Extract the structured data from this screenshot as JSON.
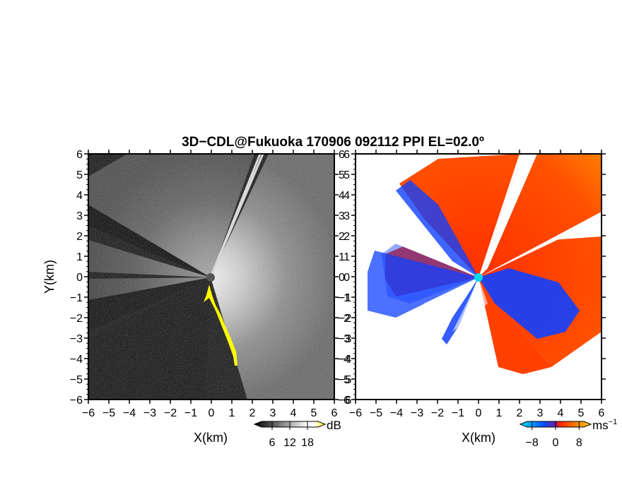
{
  "title": "3D−CDL@Fukuoka 170906 092112 PPI EL=02.0º",
  "chart_data": [
    {
      "type": "heatmap",
      "name": "reflectivity",
      "xlabel": "X(km)",
      "ylabel": "Y(km)",
      "xlim": [
        -6,
        6
      ],
      "ylim": [
        -6,
        6
      ],
      "x_ticks": [
        "−6",
        "−5",
        "−4",
        "−3",
        "−2",
        "−1",
        "0",
        "1",
        "2",
        "3",
        "4",
        "5",
        "6"
      ],
      "y_ticks": [
        "−6",
        "−5",
        "−4",
        "−3",
        "−2",
        "−1",
        "0",
        "1",
        "2",
        "3",
        "4",
        "5",
        "6"
      ],
      "colorbar": {
        "unit": "dB",
        "tick_labels": [
          "6",
          "12",
          "18"
        ],
        "ticks": [
          6,
          12,
          18
        ],
        "range": [
          0,
          24
        ],
        "colors": [
          "#000000",
          "#ffffff",
          "#ffff00"
        ]
      }
    },
    {
      "type": "heatmap",
      "name": "doppler-velocity",
      "xlabel": "X(km)",
      "xlim": [
        -6,
        6
      ],
      "ylim": [
        -6,
        6
      ],
      "x_ticks": [
        "−6",
        "−5",
        "−4",
        "−3",
        "−2",
        "−1",
        "0",
        "1",
        "2",
        "3",
        "4",
        "5",
        "6"
      ],
      "y_ticks": [
        "−6",
        "−5",
        "−4",
        "−3",
        "−2",
        "−1",
        "0",
        "1",
        "2",
        "3",
        "4",
        "5",
        "6"
      ],
      "colorbar": {
        "unit": "ms",
        "unit_exponent": "−1",
        "tick_labels": [
          "−8",
          "0",
          "8"
        ],
        "ticks": [
          -8,
          0,
          8
        ],
        "range": [
          -12,
          12
        ],
        "colors": [
          "#00e5ff",
          "#0050ff",
          "#ff2000",
          "#ff8000",
          "#ffd000"
        ]
      }
    }
  ],
  "colors": {
    "echo_yellow": "#ffff00",
    "radar_site_left": "#555555",
    "radar_site_right": "#00d8e8",
    "vel_toward": "#1040ff",
    "vel_away": "#ff3000"
  }
}
